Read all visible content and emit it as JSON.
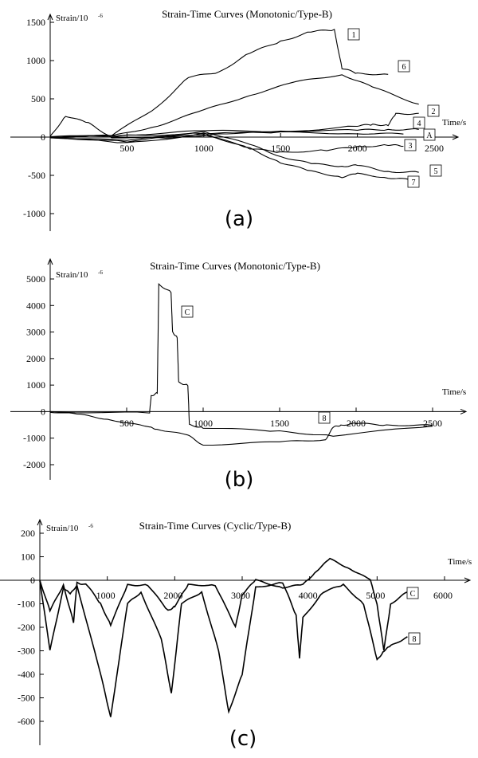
{
  "chart_data": [
    {
      "panel": "(a)",
      "type": "line",
      "title": "Strain-Time Curves (Monotonic/Type-B)",
      "ylabel": "Strain/10",
      "ylabel_exp": "-6",
      "xlabel": "Time/s",
      "xlim": [
        0,
        2500
      ],
      "ylim": [
        -1000,
        1500
      ],
      "xticks": [
        "500",
        "1000",
        "1500",
        "2000",
        "2500"
      ],
      "yticks": [
        "1500",
        "1000",
        "500",
        "0",
        "-500",
        "-1000"
      ],
      "zero_label": "0",
      "series": [
        {
          "name": "1",
          "x": [
            0,
            400,
            700,
            900,
            1100,
            1300,
            1500,
            1700,
            1850,
            1900,
            2000,
            2200
          ],
          "y": [
            0,
            20,
            400,
            780,
            850,
            1100,
            1250,
            1380,
            1400,
            900,
            830,
            820
          ]
        },
        {
          "name": "6",
          "x": [
            0,
            400,
            700,
            1000,
            1300,
            1600,
            1900,
            2100,
            2400
          ],
          "y": [
            0,
            10,
            150,
            350,
            550,
            720,
            820,
            650,
            430
          ]
        },
        {
          "name": "2",
          "x": [
            0,
            500,
            1000,
            1500,
            2000,
            2100,
            2200,
            2250,
            2400
          ],
          "y": [
            0,
            20,
            50,
            60,
            150,
            160,
            160,
            300,
            310
          ]
        },
        {
          "name": "4",
          "x": [
            0,
            500,
            1000,
            1500,
            2000,
            2200,
            2400
          ],
          "y": [
            0,
            30,
            80,
            80,
            90,
            100,
            100
          ]
        },
        {
          "name": "A",
          "x": [
            0,
            100,
            250,
            400,
            800,
            1100,
            1500,
            2000,
            2300
          ],
          "y": [
            0,
            280,
            180,
            0,
            -20,
            50,
            60,
            50,
            40
          ]
        },
        {
          "name": "3",
          "x": [
            0,
            500,
            1000,
            1300,
            1500,
            1800,
            2000,
            2200,
            2300
          ],
          "y": [
            0,
            -60,
            50,
            -150,
            -200,
            -170,
            -130,
            -100,
            -120
          ]
        },
        {
          "name": "5",
          "x": [
            0,
            500,
            1000,
            1300,
            1500,
            1700,
            1900,
            2000,
            2200,
            2400
          ],
          "y": [
            0,
            -50,
            80,
            -100,
            -250,
            -350,
            -380,
            -370,
            -450,
            -460
          ]
        },
        {
          "name": "7",
          "x": [
            0,
            500,
            1000,
            1300,
            1500,
            1700,
            1900,
            2000,
            2200,
            2350
          ],
          "y": [
            0,
            -80,
            40,
            -150,
            -330,
            -450,
            -520,
            -480,
            -530,
            -560
          ]
        }
      ],
      "caption": "(a)"
    },
    {
      "panel": "(b)",
      "type": "line",
      "title": "Strain-Time Curves (Monotonic/Type-B)",
      "ylabel": "Strain/10",
      "ylabel_exp": "-6",
      "xlabel": "Time/s",
      "xlim": [
        0,
        2500
      ],
      "ylim": [
        -2000,
        5000
      ],
      "xticks": [
        "500",
        "1000",
        "1500",
        "2000",
        "2500"
      ],
      "yticks": [
        "5000",
        "4000",
        "3000",
        "2000",
        "1000",
        "0",
        "-1000",
        "-2000"
      ],
      "zero_label": "0",
      "series": [
        {
          "name": "C",
          "x": [
            0,
            650,
            660,
            700,
            710,
            790,
            800,
            830,
            840,
            900,
            910,
            1000,
            1500,
            1850,
            2500
          ],
          "y": [
            0,
            -50,
            600,
            700,
            4800,
            4500,
            3000,
            2800,
            1100,
            1000,
            -500,
            -600,
            -750,
            -900,
            -550
          ]
        },
        {
          "name": "8",
          "x": [
            0,
            200,
            400,
            650,
            700,
            900,
            1000,
            1500,
            1800,
            1850,
            1900,
            2000,
            2200,
            2500
          ],
          "y": [
            0,
            -120,
            -300,
            -600,
            -650,
            -900,
            -1250,
            -1150,
            -1050,
            -600,
            -500,
            -450,
            -500,
            -520
          ]
        }
      ],
      "caption": "(b)"
    },
    {
      "panel": "(c)",
      "type": "line",
      "title": "Strain-Time Curves (Cyclic/Type-B)",
      "ylabel": "Strain/10",
      "ylabel_exp": "-6",
      "xlabel": "Time/s",
      "xlim": [
        0,
        6000
      ],
      "ylim": [
        -600,
        200
      ],
      "xticks": [
        "1000",
        "2000",
        "3000",
        "4000",
        "5000",
        "6000"
      ],
      "yticks": [
        "200",
        "100",
        "0",
        "-100",
        "-200",
        "-300",
        "-400",
        "-500",
        "-600"
      ],
      "zero_label": "0",
      "series": [
        {
          "name": "C",
          "x": [
            0,
            150,
            350,
            500,
            550,
            700,
            900,
            1050,
            1300,
            1600,
            1900,
            2000,
            2200,
            2600,
            2900,
            3000,
            3200,
            3600,
            3900,
            4100,
            4300,
            4600,
            4900,
            5000,
            5100,
            5200,
            5450
          ],
          "y": [
            0,
            -130,
            -20,
            -180,
            -10,
            -20,
            -100,
            -190,
            -20,
            -20,
            -130,
            -110,
            -20,
            -20,
            -200,
            -60,
            0,
            -30,
            -20,
            40,
            90,
            50,
            0,
            -100,
            -300,
            -100,
            -50
          ]
        },
        {
          "name": "8",
          "x": [
            0,
            150,
            350,
            450,
            550,
            900,
            1050,
            1300,
            1500,
            1800,
            1950,
            2100,
            2400,
            2650,
            2800,
            3000,
            3200,
            3600,
            3800,
            3850,
            3900,
            4200,
            4500,
            4800,
            5000,
            5100,
            5200,
            5450
          ],
          "y": [
            0,
            -300,
            -30,
            -60,
            -20,
            -400,
            -580,
            -100,
            -50,
            -250,
            -480,
            -100,
            -50,
            -300,
            -560,
            -400,
            -30,
            -10,
            -150,
            -330,
            -160,
            -50,
            -20,
            -100,
            -340,
            -300,
            -280,
            -240
          ]
        }
      ],
      "caption": "(c)"
    }
  ]
}
